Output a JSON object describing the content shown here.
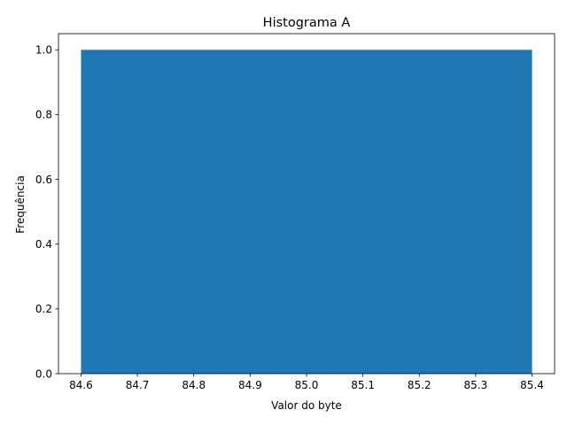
{
  "chart_data": {
    "type": "bar",
    "title": "Histograma A",
    "xlabel": "Valor do byte",
    "ylabel": "Frequência",
    "bins": [
      {
        "x_start": 84.6,
        "x_end": 85.4,
        "value": 1.0
      }
    ],
    "xlim": [
      84.56,
      85.44
    ],
    "ylim": [
      0,
      1.05
    ],
    "xticks": [
      "84.6",
      "84.7",
      "84.8",
      "84.9",
      "85.0",
      "85.1",
      "85.2",
      "85.3",
      "85.4"
    ],
    "yticks": [
      "0.0",
      "0.2",
      "0.4",
      "0.6",
      "0.8",
      "1.0"
    ],
    "grid": false,
    "legend": "none",
    "bar_color": "#1f77b4"
  }
}
